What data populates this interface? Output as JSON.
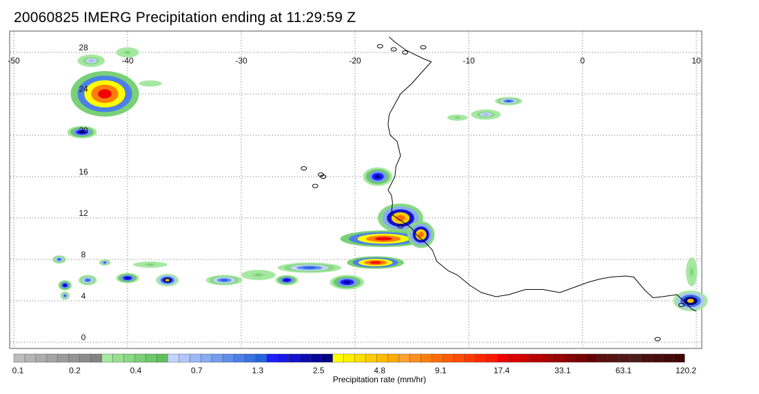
{
  "title": "20060825 IMERG Precipitation ending at 11:29:59 Z",
  "map": {
    "lon_range": [
      -50,
      10
    ],
    "lat_range": [
      -0.5,
      29.5
    ],
    "lon_ticks": [
      "-50",
      "-40",
      "-30",
      "-20",
      "-10",
      "0",
      "10"
    ],
    "lat_ticks": [
      "28",
      "24",
      "20",
      "16",
      "12",
      "8",
      "4",
      "0"
    ],
    "grid": "dotted",
    "coastline": [
      [
        -17.0,
        29.5
      ],
      [
        -16.5,
        29.0
      ],
      [
        -15.5,
        28.2
      ],
      [
        -14.0,
        27.4
      ],
      [
        -13.3,
        27.1
      ],
      [
        -14.2,
        26.0
      ],
      [
        -15.0,
        25.0
      ],
      [
        -16.0,
        24.0
      ],
      [
        -16.5,
        23.0
      ],
      [
        -17.0,
        22.0
      ],
      [
        -17.1,
        21.0
      ],
      [
        -16.9,
        20.0
      ],
      [
        -16.3,
        19.4
      ],
      [
        -16.0,
        18.0
      ],
      [
        -16.4,
        17.0
      ],
      [
        -16.5,
        16.0
      ],
      [
        -17.1,
        14.7
      ],
      [
        -16.8,
        14.2
      ],
      [
        -16.7,
        13.5
      ],
      [
        -16.8,
        12.4
      ],
      [
        -16.2,
        11.9
      ],
      [
        -15.6,
        11.5
      ],
      [
        -15.0,
        11.0
      ],
      [
        -14.6,
        10.4
      ],
      [
        -13.7,
        9.5
      ],
      [
        -13.2,
        8.9
      ],
      [
        -12.8,
        7.8
      ],
      [
        -11.8,
        6.9
      ],
      [
        -11.0,
        6.5
      ],
      [
        -9.9,
        5.5
      ],
      [
        -8.9,
        4.8
      ],
      [
        -7.6,
        4.4
      ],
      [
        -6.5,
        4.6
      ],
      [
        -5.0,
        5.1
      ],
      [
        -3.5,
        5.1
      ],
      [
        -2.0,
        4.8
      ],
      [
        -1.0,
        5.2
      ],
      [
        0.5,
        5.8
      ],
      [
        1.5,
        6.1
      ],
      [
        2.5,
        6.3
      ],
      [
        3.8,
        6.4
      ],
      [
        4.5,
        6.3
      ],
      [
        5.5,
        5.0
      ],
      [
        6.2,
        4.3
      ],
      [
        7.0,
        4.4
      ],
      [
        8.3,
        4.6
      ],
      [
        9.0,
        3.9
      ],
      [
        9.6,
        3.2
      ],
      [
        10.0,
        3.0
      ]
    ],
    "islands": [
      [
        -16.6,
        28.3
      ],
      [
        -15.6,
        28.0
      ],
      [
        -14.0,
        28.5
      ],
      [
        -17.8,
        28.6
      ],
      [
        -24.5,
        16.8
      ],
      [
        -23.5,
        15.1
      ],
      [
        -23.0,
        16.2
      ],
      [
        -22.8,
        16.0
      ],
      [
        -16.0,
        11.2
      ],
      [
        8.7,
        3.6
      ],
      [
        6.6,
        0.3
      ]
    ],
    "precip_cells": [
      {
        "lon": -42.0,
        "lat": 24.0,
        "rx": 3.0,
        "ry": 2.2,
        "rate": 17.4
      },
      {
        "lon": -43.2,
        "lat": 27.2,
        "rx": 1.2,
        "ry": 0.6,
        "rate": 0.7
      },
      {
        "lon": -40.0,
        "lat": 28.0,
        "rx": 1.0,
        "ry": 0.5,
        "rate": 0.4
      },
      {
        "lon": -44.0,
        "lat": 20.3,
        "rx": 1.3,
        "ry": 0.6,
        "rate": 2.5
      },
      {
        "lon": -38.0,
        "lat": 25.0,
        "rx": 1.0,
        "ry": 0.3,
        "rate": 0.1
      },
      {
        "lon": -18.0,
        "lat": 16.0,
        "rx": 1.3,
        "ry": 0.9,
        "rate": 2.5
      },
      {
        "lon": -16.0,
        "lat": 12.0,
        "rx": 2.0,
        "ry": 1.4,
        "rate": 9.1
      },
      {
        "lon": -17.5,
        "lat": 10.0,
        "rx": 3.8,
        "ry": 0.8,
        "rate": 17.4
      },
      {
        "lon": -14.2,
        "lat": 10.4,
        "rx": 1.2,
        "ry": 1.3,
        "rate": 9.1
      },
      {
        "lon": -18.2,
        "lat": 7.7,
        "rx": 2.5,
        "ry": 0.6,
        "rate": 17.4
      },
      {
        "lon": -24.0,
        "lat": 7.2,
        "rx": 2.8,
        "ry": 0.5,
        "rate": 1.3
      },
      {
        "lon": -20.7,
        "lat": 5.8,
        "rx": 1.5,
        "ry": 0.7,
        "rate": 2.5
      },
      {
        "lon": -28.5,
        "lat": 6.5,
        "rx": 1.5,
        "ry": 0.5,
        "rate": 0.4
      },
      {
        "lon": -26.0,
        "lat": 6.0,
        "rx": 1.0,
        "ry": 0.5,
        "rate": 2.5
      },
      {
        "lon": -31.5,
        "lat": 6.0,
        "rx": 1.6,
        "ry": 0.5,
        "rate": 1.3
      },
      {
        "lon": -36.5,
        "lat": 6.0,
        "rx": 1.0,
        "ry": 0.6,
        "rate": 4.8
      },
      {
        "lon": -40.0,
        "lat": 6.2,
        "rx": 1.0,
        "ry": 0.5,
        "rate": 2.5
      },
      {
        "lon": -43.5,
        "lat": 6.0,
        "rx": 0.8,
        "ry": 0.5,
        "rate": 1.3
      },
      {
        "lon": -45.5,
        "lat": 5.5,
        "rx": 0.6,
        "ry": 0.5,
        "rate": 2.5
      },
      {
        "lon": -46.0,
        "lat": 8.0,
        "rx": 0.6,
        "ry": 0.4,
        "rate": 1.3
      },
      {
        "lon": -42.0,
        "lat": 7.7,
        "rx": 0.5,
        "ry": 0.3,
        "rate": 1.3
      },
      {
        "lon": -38.0,
        "lat": 7.5,
        "rx": 1.5,
        "ry": 0.3,
        "rate": 0.4
      },
      {
        "lon": -45.5,
        "lat": 4.5,
        "rx": 0.4,
        "ry": 0.4,
        "rate": 1.3
      },
      {
        "lon": -6.5,
        "lat": 23.3,
        "rx": 1.2,
        "ry": 0.4,
        "rate": 1.3
      },
      {
        "lon": -8.5,
        "lat": 22.0,
        "rx": 1.3,
        "ry": 0.5,
        "rate": 0.7
      },
      {
        "lon": -11.0,
        "lat": 21.7,
        "rx": 0.9,
        "ry": 0.3,
        "rate": 0.4
      },
      {
        "lon": 9.5,
        "lat": 4.0,
        "rx": 1.5,
        "ry": 1.0,
        "rate": 4.8
      },
      {
        "lon": 9.6,
        "lat": 6.8,
        "rx": 0.5,
        "ry": 1.4,
        "rate": 0.4
      }
    ]
  },
  "colorbar": {
    "label": "Precipitation rate (mm/hr)",
    "tick_labels": [
      "0.1",
      "0.2",
      "0.4",
      "0.7",
      "1.3",
      "2.5",
      "4.8",
      "9.1",
      "17.4",
      "33.1",
      "63.1",
      "120.2"
    ],
    "colors": [
      "#bdbdbd",
      "#b4b4b4",
      "#acacac",
      "#a4a4a4",
      "#9b9b9b",
      "#939393",
      "#8b8b8b",
      "#838383",
      "#a6e8a2",
      "#96e092",
      "#88d884",
      "#7ad076",
      "#6cc868",
      "#60c05c",
      "#c4d4ff",
      "#b0c6fb",
      "#9cb8f7",
      "#88aaf3",
      "#749cef",
      "#608eeb",
      "#4c80e7",
      "#3872e3",
      "#2464df",
      "#1e1eff",
      "#1818e6",
      "#1212cc",
      "#0c0cb3",
      "#06069a",
      "#000080",
      "#ffff00",
      "#ffee00",
      "#ffdd00",
      "#ffcc00",
      "#ffbb00",
      "#ffaa00",
      "#ffa033",
      "#ff8f1e",
      "#ff7e0a",
      "#ff6d00",
      "#ff5c00",
      "#ff4b00",
      "#ff3a00",
      "#ff2900",
      "#ff1800",
      "#f00000",
      "#dd0000",
      "#cc0000",
      "#bb0000",
      "#aa0000",
      "#990000",
      "#880000",
      "#770000",
      "#660000",
      "#5a1010",
      "#561414",
      "#521818",
      "#4e1c1c",
      "#4a1010",
      "#480c0c",
      "#440808",
      "#400404"
    ]
  }
}
